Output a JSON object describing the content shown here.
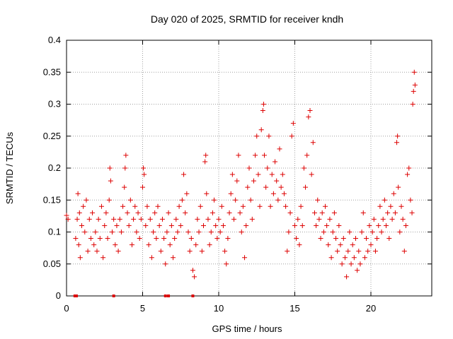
{
  "chart_data": {
    "type": "scatter",
    "title": "Day 020 of 2025, SRMTID for receiver kndh",
    "xlabel": "GPS time / hours",
    "ylabel": "SRMTID / TECUs",
    "xlim": [
      0,
      24
    ],
    "ylim": [
      0,
      0.4
    ],
    "xticks": [
      0,
      5,
      10,
      15,
      20
    ],
    "xtick_labels": [
      "0",
      "5",
      "10",
      "15",
      "20"
    ],
    "yticks": [
      0,
      0.05,
      0.1,
      0.15,
      0.2,
      0.25,
      0.3,
      0.35,
      0.4
    ],
    "ytick_labels": [
      "0",
      "0.05",
      "0.1",
      "0.15",
      "0.2",
      "0.25",
      "0.3",
      "0.35",
      "0.4"
    ],
    "grid": true,
    "marker": "+",
    "color": "#dd0000",
    "series": [
      {
        "name": "SRMTID",
        "points": [
          [
            0.0,
            0.126
          ],
          [
            0.1,
            0.12
          ],
          [
            0.6,
            0.09
          ],
          [
            0.7,
            0.12
          ],
          [
            0.75,
            0.16
          ],
          [
            0.8,
            0.08
          ],
          [
            0.85,
            0.13
          ],
          [
            0.9,
            0.06
          ],
          [
            1.0,
            0.11
          ],
          [
            1.1,
            0.14
          ],
          [
            1.2,
            0.1
          ],
          [
            1.3,
            0.15
          ],
          [
            1.4,
            0.07
          ],
          [
            1.5,
            0.12
          ],
          [
            1.6,
            0.09
          ],
          [
            1.7,
            0.13
          ],
          [
            1.8,
            0.08
          ],
          [
            1.9,
            0.1
          ],
          [
            2.0,
            0.07
          ],
          [
            2.1,
            0.12
          ],
          [
            2.2,
            0.09
          ],
          [
            2.3,
            0.14
          ],
          [
            2.4,
            0.06
          ],
          [
            2.5,
            0.11
          ],
          [
            2.6,
            0.13
          ],
          [
            2.7,
            0.09
          ],
          [
            2.8,
            0.15
          ],
          [
            2.85,
            0.2
          ],
          [
            2.9,
            0.18
          ],
          [
            3.0,
            0.1
          ],
          [
            3.1,
            0.12
          ],
          [
            3.2,
            0.08
          ],
          [
            3.3,
            0.11
          ],
          [
            3.4,
            0.07
          ],
          [
            3.5,
            0.12
          ],
          [
            3.6,
            0.1
          ],
          [
            3.7,
            0.14
          ],
          [
            3.8,
            0.17
          ],
          [
            3.85,
            0.2
          ],
          [
            3.9,
            0.22
          ],
          [
            4.0,
            0.13
          ],
          [
            4.1,
            0.11
          ],
          [
            4.2,
            0.15
          ],
          [
            4.3,
            0.08
          ],
          [
            4.4,
            0.12
          ],
          [
            4.5,
            0.14
          ],
          [
            4.6,
            0.1
          ],
          [
            4.7,
            0.13
          ],
          [
            4.8,
            0.09
          ],
          [
            4.9,
            0.12
          ],
          [
            5.0,
            0.17
          ],
          [
            5.05,
            0.2
          ],
          [
            5.1,
            0.19
          ],
          [
            5.2,
            0.11
          ],
          [
            5.3,
            0.14
          ],
          [
            5.4,
            0.08
          ],
          [
            5.5,
            0.12
          ],
          [
            5.6,
            0.06
          ],
          [
            5.7,
            0.1
          ],
          [
            5.8,
            0.13
          ],
          [
            5.9,
            0.09
          ],
          [
            6.0,
            0.14
          ],
          [
            6.1,
            0.11
          ],
          [
            6.2,
            0.07
          ],
          [
            6.3,
            0.12
          ],
          [
            6.4,
            0.09
          ],
          [
            6.5,
            0.05
          ],
          [
            6.6,
            0.1
          ],
          [
            6.7,
            0.13
          ],
          [
            6.8,
            0.08
          ],
          [
            6.9,
            0.11
          ],
          [
            7.0,
            0.06
          ],
          [
            7.1,
            0.09
          ],
          [
            7.2,
            0.12
          ],
          [
            7.3,
            0.1
          ],
          [
            7.4,
            0.14
          ],
          [
            7.5,
            0.11
          ],
          [
            7.6,
            0.15
          ],
          [
            7.7,
            0.19
          ],
          [
            7.8,
            0.13
          ],
          [
            7.9,
            0.16
          ],
          [
            8.0,
            0.1
          ],
          [
            8.1,
            0.07
          ],
          [
            8.2,
            0.09
          ],
          [
            8.3,
            0.04
          ],
          [
            8.4,
            0.03
          ],
          [
            8.5,
            0.08
          ],
          [
            8.6,
            0.12
          ],
          [
            8.7,
            0.1
          ],
          [
            8.8,
            0.14
          ],
          [
            8.9,
            0.07
          ],
          [
            9.0,
            0.11
          ],
          [
            9.1,
            0.21
          ],
          [
            9.15,
            0.22
          ],
          [
            9.2,
            0.16
          ],
          [
            9.3,
            0.12
          ],
          [
            9.4,
            0.08
          ],
          [
            9.5,
            0.1
          ],
          [
            9.6,
            0.13
          ],
          [
            9.7,
            0.15
          ],
          [
            9.8,
            0.11
          ],
          [
            9.9,
            0.09
          ],
          [
            10.0,
            0.12
          ],
          [
            10.1,
            0.1
          ],
          [
            10.2,
            0.14
          ],
          [
            10.3,
            0.11
          ],
          [
            10.4,
            0.07
          ],
          [
            10.5,
            0.05
          ],
          [
            10.6,
            0.09
          ],
          [
            10.7,
            0.13
          ],
          [
            10.8,
            0.16
          ],
          [
            10.9,
            0.19
          ],
          [
            11.0,
            0.12
          ],
          [
            11.1,
            0.15
          ],
          [
            11.2,
            0.18
          ],
          [
            11.3,
            0.22
          ],
          [
            11.4,
            0.13
          ],
          [
            11.5,
            0.1
          ],
          [
            11.6,
            0.14
          ],
          [
            11.7,
            0.06
          ],
          [
            11.8,
            0.11
          ],
          [
            11.9,
            0.17
          ],
          [
            12.0,
            0.2
          ],
          [
            12.1,
            0.15
          ],
          [
            12.2,
            0.12
          ],
          [
            12.3,
            0.18
          ],
          [
            12.4,
            0.22
          ],
          [
            12.5,
            0.25
          ],
          [
            12.6,
            0.19
          ],
          [
            12.7,
            0.14
          ],
          [
            12.8,
            0.26
          ],
          [
            12.9,
            0.29
          ],
          [
            12.95,
            0.3
          ],
          [
            13.0,
            0.22
          ],
          [
            13.1,
            0.17
          ],
          [
            13.2,
            0.2
          ],
          [
            13.3,
            0.25
          ],
          [
            13.4,
            0.14
          ],
          [
            13.5,
            0.19
          ],
          [
            13.6,
            0.16
          ],
          [
            13.7,
            0.21
          ],
          [
            13.8,
            0.18
          ],
          [
            13.9,
            0.15
          ],
          [
            14.0,
            0.23
          ],
          [
            14.1,
            0.17
          ],
          [
            14.2,
            0.19
          ],
          [
            14.3,
            0.16
          ],
          [
            14.4,
            0.14
          ],
          [
            14.5,
            0.07
          ],
          [
            14.6,
            0.1
          ],
          [
            14.7,
            0.13
          ],
          [
            14.8,
            0.25
          ],
          [
            14.9,
            0.27
          ],
          [
            15.0,
            0.11
          ],
          [
            15.1,
            0.09
          ],
          [
            15.2,
            0.12
          ],
          [
            15.3,
            0.08
          ],
          [
            15.4,
            0.14
          ],
          [
            15.5,
            0.11
          ],
          [
            15.6,
            0.2
          ],
          [
            15.7,
            0.17
          ],
          [
            15.8,
            0.22
          ],
          [
            15.9,
            0.28
          ],
          [
            16.0,
            0.29
          ],
          [
            16.1,
            0.19
          ],
          [
            16.2,
            0.24
          ],
          [
            16.3,
            0.13
          ],
          [
            16.4,
            0.11
          ],
          [
            16.5,
            0.15
          ],
          [
            16.6,
            0.12
          ],
          [
            16.7,
            0.09
          ],
          [
            16.8,
            0.13
          ],
          [
            16.9,
            0.1
          ],
          [
            17.0,
            0.14
          ],
          [
            17.1,
            0.11
          ],
          [
            17.2,
            0.08
          ],
          [
            17.3,
            0.12
          ],
          [
            17.4,
            0.06
          ],
          [
            17.5,
            0.1
          ],
          [
            17.6,
            0.13
          ],
          [
            17.7,
            0.09
          ],
          [
            17.8,
            0.07
          ],
          [
            17.9,
            0.11
          ],
          [
            18.0,
            0.08
          ],
          [
            18.1,
            0.05
          ],
          [
            18.2,
            0.09
          ],
          [
            18.3,
            0.06
          ],
          [
            18.4,
            0.03
          ],
          [
            18.5,
            0.07
          ],
          [
            18.6,
            0.1
          ],
          [
            18.7,
            0.05
          ],
          [
            18.8,
            0.08
          ],
          [
            18.9,
            0.06
          ],
          [
            19.0,
            0.09
          ],
          [
            19.1,
            0.04
          ],
          [
            19.2,
            0.07
          ],
          [
            19.3,
            0.05
          ],
          [
            19.4,
            0.1
          ],
          [
            19.5,
            0.13
          ],
          [
            19.6,
            0.06
          ],
          [
            19.7,
            0.09
          ],
          [
            19.8,
            0.07
          ],
          [
            19.9,
            0.11
          ],
          [
            20.0,
            0.08
          ],
          [
            20.1,
            0.1
          ],
          [
            20.2,
            0.12
          ],
          [
            20.3,
            0.07
          ],
          [
            20.4,
            0.09
          ],
          [
            20.5,
            0.11
          ],
          [
            20.6,
            0.14
          ],
          [
            20.7,
            0.1
          ],
          [
            20.8,
            0.12
          ],
          [
            20.9,
            0.15
          ],
          [
            21.0,
            0.11
          ],
          [
            21.1,
            0.13
          ],
          [
            21.2,
            0.09
          ],
          [
            21.3,
            0.14
          ],
          [
            21.4,
            0.12
          ],
          [
            21.5,
            0.16
          ],
          [
            21.6,
            0.13
          ],
          [
            21.7,
            0.24
          ],
          [
            21.75,
            0.25
          ],
          [
            21.8,
            0.17
          ],
          [
            21.9,
            0.1
          ],
          [
            22.0,
            0.14
          ],
          [
            22.1,
            0.12
          ],
          [
            22.2,
            0.07
          ],
          [
            22.3,
            0.11
          ],
          [
            22.4,
            0.19
          ],
          [
            22.5,
            0.2
          ],
          [
            22.6,
            0.15
          ],
          [
            22.7,
            0.13
          ],
          [
            22.75,
            0.3
          ],
          [
            22.8,
            0.32
          ],
          [
            22.85,
            0.35
          ],
          [
            22.9,
            0.33
          ]
        ]
      }
    ],
    "zero_markers": [
      0.55,
      0.65,
      3.1,
      6.5,
      6.7,
      8.3
    ]
  }
}
